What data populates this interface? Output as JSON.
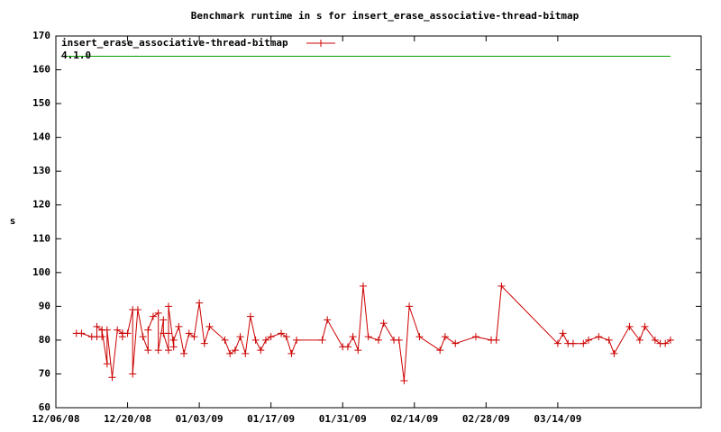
{
  "chart_data": {
    "type": "line",
    "title": "Benchmark runtime in s for insert_erase_associative-thread-bitmap",
    "y_label": "s",
    "xlim": [
      "12/06/08",
      "04/11/09"
    ],
    "xticks": [
      "12/06/08",
      "12/20/08",
      "01/03/09",
      "01/17/09",
      "01/31/09",
      "02/14/09",
      "02/28/09",
      "03/14/09"
    ],
    "ylim": [
      60,
      170
    ],
    "yticks": [
      60,
      70,
      80,
      90,
      100,
      110,
      120,
      130,
      140,
      150,
      160,
      170
    ],
    "legend": "top-left",
    "series": [
      {
        "name": "insert_erase_associative-thread-bitmap",
        "color": "#cc0000",
        "markers": true,
        "x": [
          "12/10/08",
          "12/11/08",
          "12/13/08",
          "12/14/08",
          "12/14/08",
          "12/15/08",
          "12/15/08",
          "12/15/08",
          "12/16/08",
          "12/16/08",
          "12/17/08",
          "12/18/08",
          "12/19/08",
          "12/19/08",
          "12/19/08",
          "12/20/08",
          "12/21/08",
          "12/21/08",
          "12/22/08",
          "12/23/08",
          "12/24/08",
          "12/24/08",
          "12/25/08",
          "12/26/08",
          "12/26/08",
          "12/27/08",
          "12/27/08",
          "12/28/08",
          "12/28/08",
          "12/28/08",
          "12/29/08",
          "12/29/08",
          "12/30/08",
          "12/31/08",
          "01/01/09",
          "01/02/09",
          "01/03/09",
          "01/04/09",
          "01/05/09",
          "01/08/09",
          "01/09/09",
          "01/10/09",
          "01/11/09",
          "01/12/09",
          "01/13/09",
          "01/14/09",
          "01/15/09",
          "01/16/09",
          "01/17/09",
          "01/19/09",
          "01/20/09",
          "01/21/09",
          "01/22/09",
          "01/27/09",
          "01/28/09",
          "01/31/09",
          "02/01/09",
          "02/02/09",
          "02/03/09",
          "02/04/09",
          "02/05/09",
          "02/07/09",
          "02/08/09",
          "02/10/09",
          "02/11/09",
          "02/12/09",
          "02/13/09",
          "02/15/09",
          "02/19/09",
          "02/20/09",
          "02/22/09",
          "02/26/09",
          "03/01/09",
          "03/02/09",
          "03/03/09",
          "03/14/09",
          "03/15/09",
          "03/16/09",
          "03/17/09",
          "03/19/09",
          "03/20/09",
          "03/22/09",
          "03/24/09",
          "03/25/09",
          "03/28/09",
          "03/30/09",
          "03/31/09",
          "04/02/09",
          "04/03/09",
          "04/04/09",
          "04/05/09"
        ],
        "values": [
          82,
          82,
          81,
          81,
          84,
          83,
          81,
          83,
          73,
          83,
          69,
          83,
          82,
          81,
          82,
          82,
          89,
          70,
          89,
          81,
          77,
          83,
          87,
          88,
          77,
          86,
          82,
          77,
          82,
          90,
          78,
          80,
          84,
          76,
          82,
          81,
          91,
          79,
          84,
          80,
          76,
          77,
          81,
          76,
          87,
          80,
          77,
          80,
          81,
          82,
          81,
          76,
          80,
          80,
          86,
          78,
          78,
          81,
          77,
          96,
          81,
          80,
          85,
          80,
          80,
          68,
          90,
          81,
          77,
          81,
          79,
          81,
          80,
          80,
          96,
          79,
          82,
          79,
          79,
          79,
          80,
          81,
          80,
          76,
          84,
          80,
          84,
          80,
          79,
          79,
          80
        ]
      },
      {
        "name": "4.1.0",
        "color": "#00a000",
        "markers": false,
        "x": [
          "12/07/08",
          "04/05/09"
        ],
        "values": [
          164,
          164
        ]
      }
    ]
  }
}
